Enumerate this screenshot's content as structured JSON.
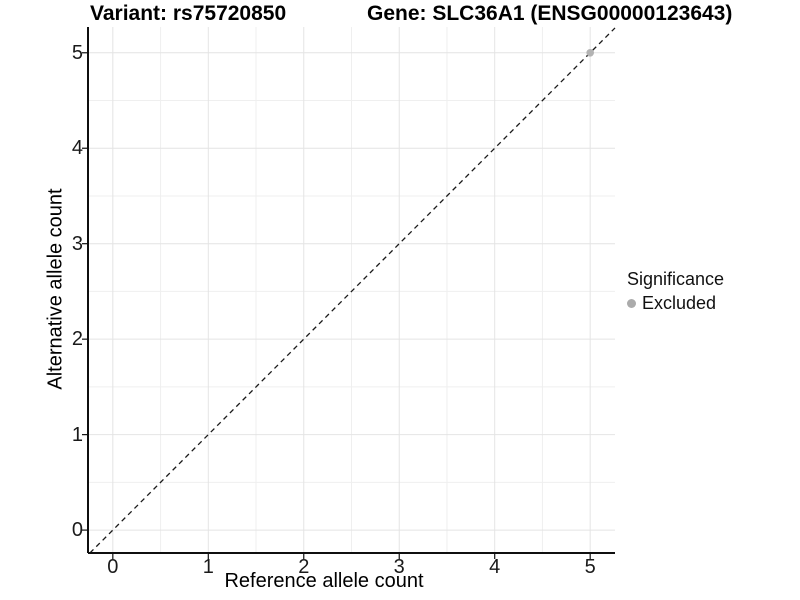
{
  "header": {
    "variant_title": "Variant: rs75720850",
    "gene_title": "Gene: SLC36A1 (ENSG00000123643)"
  },
  "chart_data": {
    "type": "scatter",
    "xlabel": "Reference allele count",
    "ylabel": "Alternative allele count",
    "xlim": [
      -0.26,
      5.26
    ],
    "ylim": [
      -0.24,
      5.27
    ],
    "x_ticks": [
      0,
      1,
      2,
      3,
      4,
      5
    ],
    "y_ticks": [
      0,
      1,
      2,
      3,
      4,
      5
    ],
    "minor_step": 0.5,
    "grid": "major+minor",
    "identity_line": {
      "slope": 1,
      "intercept": 0,
      "style": "dashed",
      "color": "#1a1a1a"
    },
    "points": [
      {
        "x": 5,
        "y": 5,
        "series": "Excluded"
      }
    ],
    "legend": {
      "title": "Significance",
      "position": "right",
      "items": [
        {
          "label": "Excluded",
          "color": "#abababff",
          "marker": "circle"
        }
      ]
    },
    "colors": {
      "background": "#ffffff",
      "grid_major": "#e4e4e4",
      "grid_minor": "#efefef",
      "axis": "#0f0f0f",
      "tick_text": "#1a1a1a",
      "point": "#b3b3b3"
    }
  }
}
